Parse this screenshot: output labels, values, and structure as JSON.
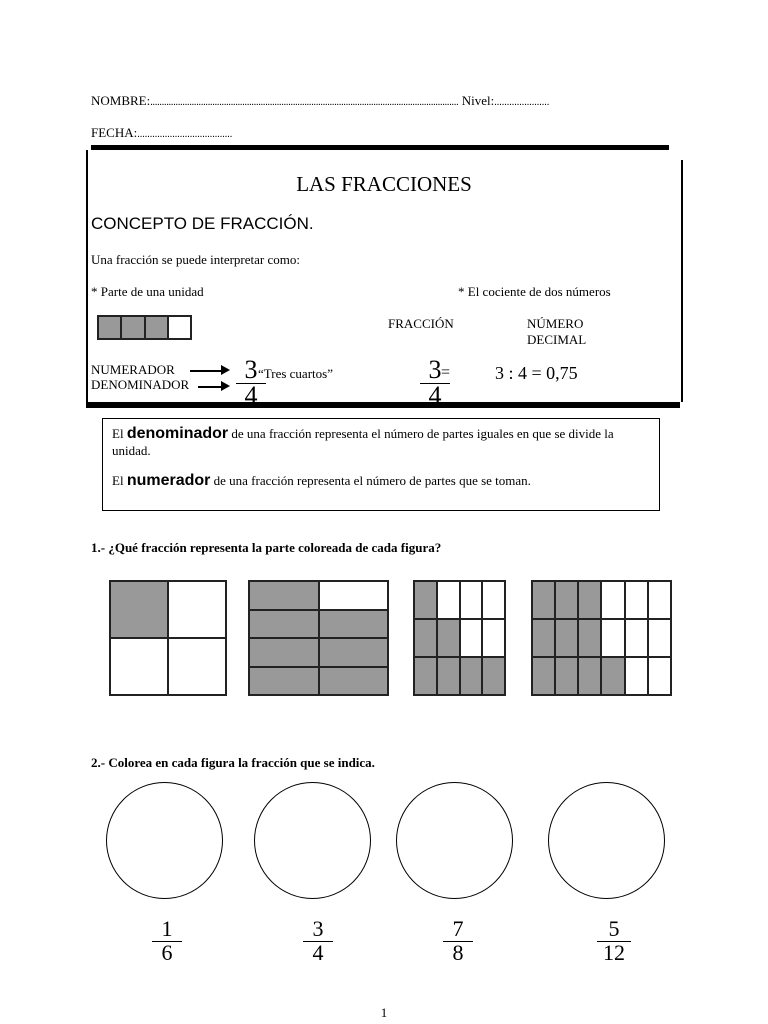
{
  "header": {
    "name_label": "NOMBRE:",
    "name_dots": "......................................................................................................................................",
    "level_label": "Nivel:",
    "level_dots": "......................",
    "date_label": "FECHA:",
    "date_dots": "......................................"
  },
  "title": "LAS FRACCIONES",
  "concept": {
    "heading": "CONCEPTO DE FRACCIÓN.",
    "intro": "Una fracción se puede interpretar como:",
    "bullet1": "* Parte de una unidad",
    "bullet2": "* El cociente de dos números",
    "col_fraction": "FRACCIÓN",
    "col_decimal1": "NÚMERO",
    "col_decimal2": "DECIMAL",
    "numerator_label": "NUMERADOR",
    "denominator_label": "DENOMINADOR",
    "example_num": "3",
    "example_den": "4",
    "example_words": "“Tres cuartos”",
    "equals": "=",
    "division": "3 : 4 =  0,75",
    "unit_shaded": [
      1,
      1,
      1,
      0
    ]
  },
  "definitions": {
    "d_pre": "El ",
    "d_term": "denominador",
    "d_post": " de una fracción representa el número de partes iguales en que se divide la unidad.",
    "n_pre": "El ",
    "n_term": "numerador",
    "n_post": " de una fracción representa el número de partes que se toman."
  },
  "exercise1": {
    "title": "1.- ¿Qué fracción representa la parte coloreada de cada figura?",
    "figures": [
      {
        "rows": 2,
        "cols": 2,
        "shaded": [
          [
            1,
            0
          ],
          [
            0,
            0
          ]
        ]
      },
      {
        "rows": 4,
        "cols": 2,
        "shaded": [
          [
            1,
            0
          ],
          [
            1,
            1
          ],
          [
            1,
            1
          ],
          [
            1,
            1
          ]
        ]
      },
      {
        "rows": 3,
        "cols": 4,
        "shaded": [
          [
            1,
            0,
            0,
            0
          ],
          [
            1,
            1,
            0,
            0
          ],
          [
            1,
            1,
            1,
            1
          ]
        ]
      },
      {
        "rows": 3,
        "cols": 6,
        "shaded": [
          [
            1,
            1,
            1,
            0,
            0,
            0
          ],
          [
            1,
            1,
            1,
            0,
            0,
            0
          ],
          [
            1,
            1,
            1,
            1,
            0,
            0
          ]
        ]
      }
    ]
  },
  "exercise2": {
    "title": "2.- Colorea en cada figura la fracción que se indica.",
    "fractions": [
      {
        "num": "1",
        "den": "6"
      },
      {
        "num": "3",
        "den": "4"
      },
      {
        "num": "7",
        "den": "8"
      },
      {
        "num": "5",
        "den": "12"
      }
    ]
  },
  "page_number": "1"
}
